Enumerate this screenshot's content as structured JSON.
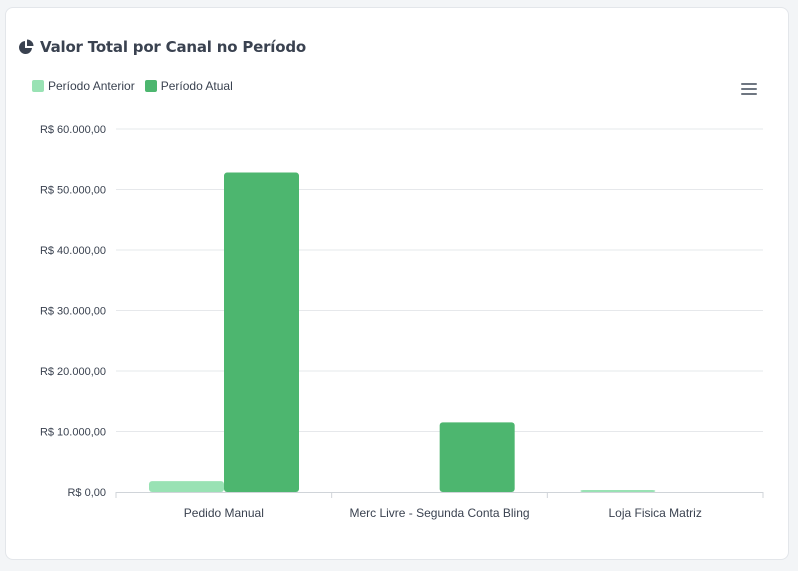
{
  "card": {
    "title": "Valor Total por Canal no Período",
    "title_icon": "pie-chart-icon",
    "menu_icon": "hamburger-menu-icon"
  },
  "colors": {
    "previous": "#99e2b4",
    "current": "#4db66f"
  },
  "chart_data": {
    "type": "bar",
    "categories": [
      "Pedido Manual",
      "Merc Livre - Segunda Conta Bling",
      "Loja Fisica Matriz"
    ],
    "series": [
      {
        "name": "Período Anterior",
        "values": [
          1800,
          0,
          200
        ]
      },
      {
        "name": "Período Atual",
        "values": [
          52800,
          11500,
          0
        ]
      }
    ],
    "yticks": [
      "R$ 0,00",
      "R$ 10.000,00",
      "R$ 20.000,00",
      "R$ 30.000,00",
      "R$ 40.000,00",
      "R$ 50.000,00",
      "R$ 60.000,00"
    ],
    "ylim": [
      0,
      60000
    ],
    "grid": true,
    "legend_position": "top-left"
  }
}
